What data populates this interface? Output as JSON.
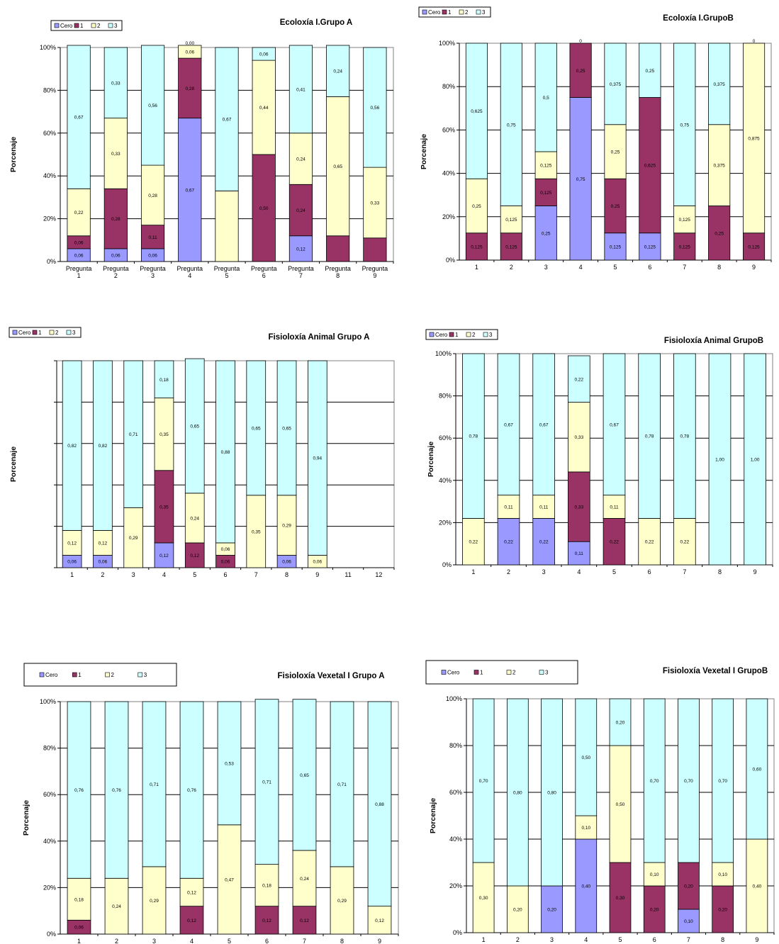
{
  "colors": {
    "Cero": "#9999ff",
    "1": "#993366",
    "2": "#ffffcc",
    "3": "#ccffff"
  },
  "chart_data": [
    {
      "type": "bar",
      "stacked": true,
      "title": "Ecoloxía I.Grupo A",
      "ylabel": "Porcenaje",
      "ylim": [
        0,
        100
      ],
      "yticks": [
        "0%",
        "20%",
        "40%",
        "60%",
        "80%",
        "100%"
      ],
      "grid": true,
      "legend": {
        "placement": "top-left",
        "entries": [
          "Cero",
          "1",
          "2",
          "3"
        ]
      },
      "categories": [
        "Pregunta 1",
        "Pregunta 2",
        "Pregunta 3",
        "Pregunta 4",
        "Pregunta 5",
        "Pregunta 6",
        "Pregunta 7",
        "Pregunta 8",
        "Pregunta 9"
      ],
      "series": [
        {
          "name": "Cero",
          "values": [
            0.06,
            0.06,
            0.06,
            0.67,
            0,
            0,
            0.12,
            0,
            0
          ],
          "labels": [
            "0,06",
            "0,06",
            "0,06",
            "0,67",
            "0,00",
            "0,00",
            "0,12",
            "0,00",
            "0,00"
          ]
        },
        {
          "name": "1",
          "values": [
            0.06,
            0.28,
            0.11,
            0.28,
            0,
            0.5,
            0.24,
            0.12,
            0.11
          ],
          "labels": [
            "0,06",
            "0,28",
            "0,11",
            "0,28",
            "",
            "0,50",
            "0,24",
            "",
            ""
          ]
        },
        {
          "name": "2",
          "values": [
            0.22,
            0.33,
            0.28,
            0.06,
            0.33,
            0.44,
            0.24,
            0.65,
            0.33
          ],
          "labels": [
            "0,22",
            "0,33",
            "0,28",
            "0,06",
            "",
            "0,44",
            "0,24",
            "0,65",
            "0,33"
          ]
        },
        {
          "name": "3",
          "values": [
            0.67,
            0.33,
            0.56,
            0,
            0.67,
            0.06,
            0.41,
            0.24,
            0.56
          ],
          "labels": [
            "0,67",
            "0,33",
            "0,56",
            "0,00",
            "0,67",
            "0,06",
            "0,41",
            "0,24",
            "0,56"
          ]
        }
      ]
    },
    {
      "type": "bar",
      "stacked": true,
      "title": "Ecoloxía I.GrupoB",
      "ylabel": "Porcenaje",
      "ylim": [
        0,
        100
      ],
      "yticks": [
        "0%",
        "20%",
        "40%",
        "60%",
        "80%",
        "100%"
      ],
      "grid": true,
      "legend": {
        "placement": "top-left",
        "entries": [
          "Cero",
          "1",
          "2",
          "3"
        ]
      },
      "categories": [
        "1",
        "2",
        "3",
        "4",
        "5",
        "6",
        "7",
        "8",
        "9"
      ],
      "series": [
        {
          "name": "Cero",
          "values": [
            0,
            0,
            0.25,
            0.75,
            0.125,
            0.125,
            0,
            0,
            0
          ],
          "labels": [
            "0",
            "0",
            "0,25",
            "0,75",
            "0,125",
            "0,125",
            "",
            "0",
            ""
          ]
        },
        {
          "name": "1",
          "values": [
            0.125,
            0.125,
            0.125,
            0.25,
            0.25,
            0.625,
            0.125,
            0.25,
            0.125
          ],
          "labels": [
            "0,125",
            "0,125",
            "0,125",
            "0,25",
            "0,25",
            "0,625",
            "0,125",
            "0,25",
            "0,125"
          ]
        },
        {
          "name": "2",
          "values": [
            0.25,
            0.125,
            0.125,
            0,
            0.25,
            0,
            0.125,
            0.375,
            0.875
          ],
          "labels": [
            "0,25",
            "0,125",
            "0,125",
            "0",
            "0,25",
            "0",
            "0,125",
            "0,375",
            "0,875"
          ]
        },
        {
          "name": "3",
          "values": [
            0.625,
            0.75,
            0.5,
            0,
            0.375,
            0.25,
            0.75,
            0.375,
            0
          ],
          "labels": [
            "0,625",
            "0,75",
            "0,5",
            "",
            "0,375",
            "0,25",
            "0,75",
            "0,375",
            "0"
          ]
        }
      ]
    },
    {
      "type": "bar",
      "stacked": true,
      "title": "Fisioloxía Animal Grupo A",
      "ylabel": "Porcenaje",
      "ylim": [
        0,
        100
      ],
      "yticks": [],
      "grid": true,
      "legend": {
        "placement": "top-left",
        "entries": [
          "Cero",
          "1",
          "2",
          "3"
        ]
      },
      "categories": [
        "1",
        "2",
        "3",
        "4",
        "5",
        "6",
        "7",
        "8",
        "9",
        "11",
        "12"
      ],
      "series": [
        {
          "name": "Cero",
          "values": [
            0.06,
            0.06,
            0,
            0.12,
            0,
            0,
            0,
            0.06,
            0,
            0,
            0
          ],
          "labels": [
            "0,06",
            "0,06",
            "0,00",
            "0,12",
            "",
            "",
            "0,00",
            "0,06",
            "0,00",
            "",
            ""
          ]
        },
        {
          "name": "1",
          "values": [
            0,
            0,
            0,
            0.35,
            0.12,
            0.06,
            0,
            0,
            0,
            0,
            0
          ],
          "labels": [
            "0,00",
            "0,00",
            "",
            "0,35",
            "0,12",
            "0,06",
            "",
            "0,00",
            "",
            "",
            ""
          ]
        },
        {
          "name": "2",
          "values": [
            0.12,
            0.12,
            0.29,
            0.35,
            0.24,
            0.06,
            0.35,
            0.29,
            0.06,
            0,
            0
          ],
          "labels": [
            "0,12",
            "0,12",
            "0,29",
            "0,35",
            "0,24",
            "0,06",
            "0,35",
            "0,29",
            "0,06",
            "",
            ""
          ]
        },
        {
          "name": "3",
          "values": [
            0.82,
            0.82,
            0.71,
            0.18,
            0.65,
            0.88,
            0.65,
            0.65,
            0.94,
            0,
            0
          ],
          "labels": [
            "0,82",
            "0,82",
            "0,71",
            "0,18",
            "0,65",
            "0,88",
            "0,65",
            "0,65",
            "0,94",
            "",
            ""
          ]
        }
      ]
    },
    {
      "type": "bar",
      "stacked": true,
      "title": "Fisioloxía Animal GrupoB",
      "ylabel": "Porcenaje",
      "ylim": [
        0,
        100
      ],
      "yticks": [
        "0%",
        "20%",
        "40%",
        "60%",
        "80%",
        "100%"
      ],
      "grid": true,
      "legend": {
        "placement": "top-left",
        "entries": [
          "Cero",
          "1",
          "2",
          "3"
        ]
      },
      "categories": [
        "1",
        "2",
        "3",
        "4",
        "5",
        "6",
        "7",
        "8",
        "9"
      ],
      "series": [
        {
          "name": "Cero",
          "values": [
            0,
            0.22,
            0.22,
            0.11,
            0,
            0,
            0,
            0,
            0
          ],
          "labels": [
            "0,00",
            "0,22",
            "0,22",
            "0,11",
            "0,00",
            "0,00",
            "0,00",
            "0,00",
            "0,00"
          ]
        },
        {
          "name": "1",
          "values": [
            0,
            0,
            0,
            0.33,
            0.22,
            0,
            0,
            0,
            0
          ],
          "labels": [
            "",
            "0,00",
            "0,00",
            "0,33",
            "0,22",
            "",
            "",
            "",
            ""
          ]
        },
        {
          "name": "2",
          "values": [
            0.22,
            0.11,
            0.11,
            0.33,
            0.11,
            0.22,
            0.22,
            0,
            0
          ],
          "labels": [
            "0,22",
            "0,11",
            "0,11",
            "0,33",
            "0,11",
            "0,22",
            "0,22",
            "",
            ""
          ]
        },
        {
          "name": "3",
          "values": [
            0.78,
            0.67,
            0.67,
            0.22,
            0.67,
            0.78,
            0.78,
            1.0,
            1.0
          ],
          "labels": [
            "0,78",
            "0,67",
            "0,67",
            "0,22",
            "0,67",
            "0,78",
            "0,78",
            "1,00",
            "1,00"
          ]
        }
      ]
    },
    {
      "type": "bar",
      "stacked": true,
      "title": "Fisioloxía Vexetal I Grupo A",
      "ylabel": "Porcenaje",
      "ylim": [
        0,
        100
      ],
      "yticks": [
        "0%",
        "20%",
        "40%",
        "60%",
        "80%",
        "100%"
      ],
      "grid": true,
      "legend": {
        "placement": "top-left",
        "entries": [
          "Cero",
          "1",
          "2",
          "3"
        ]
      },
      "categories": [
        "1",
        "2",
        "3",
        "4",
        "5",
        "6",
        "7",
        "8",
        "9"
      ],
      "series": [
        {
          "name": "Cero",
          "values": [
            0,
            0,
            0,
            0,
            0,
            0,
            0,
            0,
            0
          ],
          "labels": [
            "0,00",
            "0,00",
            "0,00",
            "0,00",
            "0,00",
            "0,00",
            "0,00",
            "0,00",
            "0,00"
          ]
        },
        {
          "name": "1",
          "values": [
            0.06,
            0,
            0,
            0.12,
            0,
            0.12,
            0.12,
            0,
            0
          ],
          "labels": [
            "0,06",
            "",
            "",
            "0,12",
            "",
            "0,12",
            "0,12",
            "",
            ""
          ]
        },
        {
          "name": "2",
          "values": [
            0.18,
            0.24,
            0.29,
            0.12,
            0.47,
            0.18,
            0.24,
            0.29,
            0.12
          ],
          "labels": [
            "0,18",
            "0,24",
            "0,29",
            "0,12",
            "0,47",
            "0,18",
            "0,24",
            "0,29",
            "0,12"
          ]
        },
        {
          "name": "3",
          "values": [
            0.76,
            0.76,
            0.71,
            0.76,
            0.53,
            0.71,
            0.65,
            0.71,
            0.88
          ],
          "labels": [
            "0,76",
            "0,76",
            "0,71",
            "0,76",
            "0,53",
            "0,71",
            "0,65",
            "0,71",
            "0,88"
          ]
        }
      ]
    },
    {
      "type": "bar",
      "stacked": true,
      "title": "Fisioloxía Vexetal I GrupoB",
      "ylabel": "Porcenaje",
      "ylim": [
        0,
        100
      ],
      "yticks": [
        "0%",
        "20%",
        "40%",
        "60%",
        "80%",
        "100%"
      ],
      "grid": true,
      "legend": {
        "placement": "top-left",
        "entries": [
          "Cero",
          "1",
          "2",
          "3"
        ]
      },
      "categories": [
        "1",
        "2",
        "3",
        "4",
        "5",
        "6",
        "7",
        "8",
        "9"
      ],
      "series": [
        {
          "name": "Cero",
          "values": [
            0,
            0,
            0.2,
            0.4,
            0,
            0,
            0.1,
            0,
            0
          ],
          "labels": [
            "0,00",
            "0,00",
            "0,20",
            "0,40",
            "0,00",
            "",
            "0,10",
            "0,00",
            "0,00"
          ]
        },
        {
          "name": "1",
          "values": [
            0,
            0,
            0,
            0,
            0.3,
            0.2,
            0.2,
            0.2,
            0
          ],
          "labels": [
            "",
            "",
            "0,00",
            "0,00",
            "0,30",
            "0,20",
            "0,20",
            "0,20",
            ""
          ]
        },
        {
          "name": "2",
          "values": [
            0.3,
            0.2,
            0,
            0.1,
            0.5,
            0.1,
            0,
            0.1,
            0.4
          ],
          "labels": [
            "0,30",
            "0,20",
            "",
            "0,10",
            "0,50",
            "0,10",
            "0,00",
            "0,10",
            "0,40"
          ]
        },
        {
          "name": "3",
          "values": [
            0.7,
            0.8,
            0.8,
            0.5,
            0.2,
            0.7,
            0.7,
            0.7,
            0.6
          ],
          "labels": [
            "0,70",
            "0,80",
            "0,80",
            "0,50",
            "0,20",
            "0,70",
            "0,70",
            "0,70",
            "0,60"
          ]
        }
      ]
    }
  ]
}
